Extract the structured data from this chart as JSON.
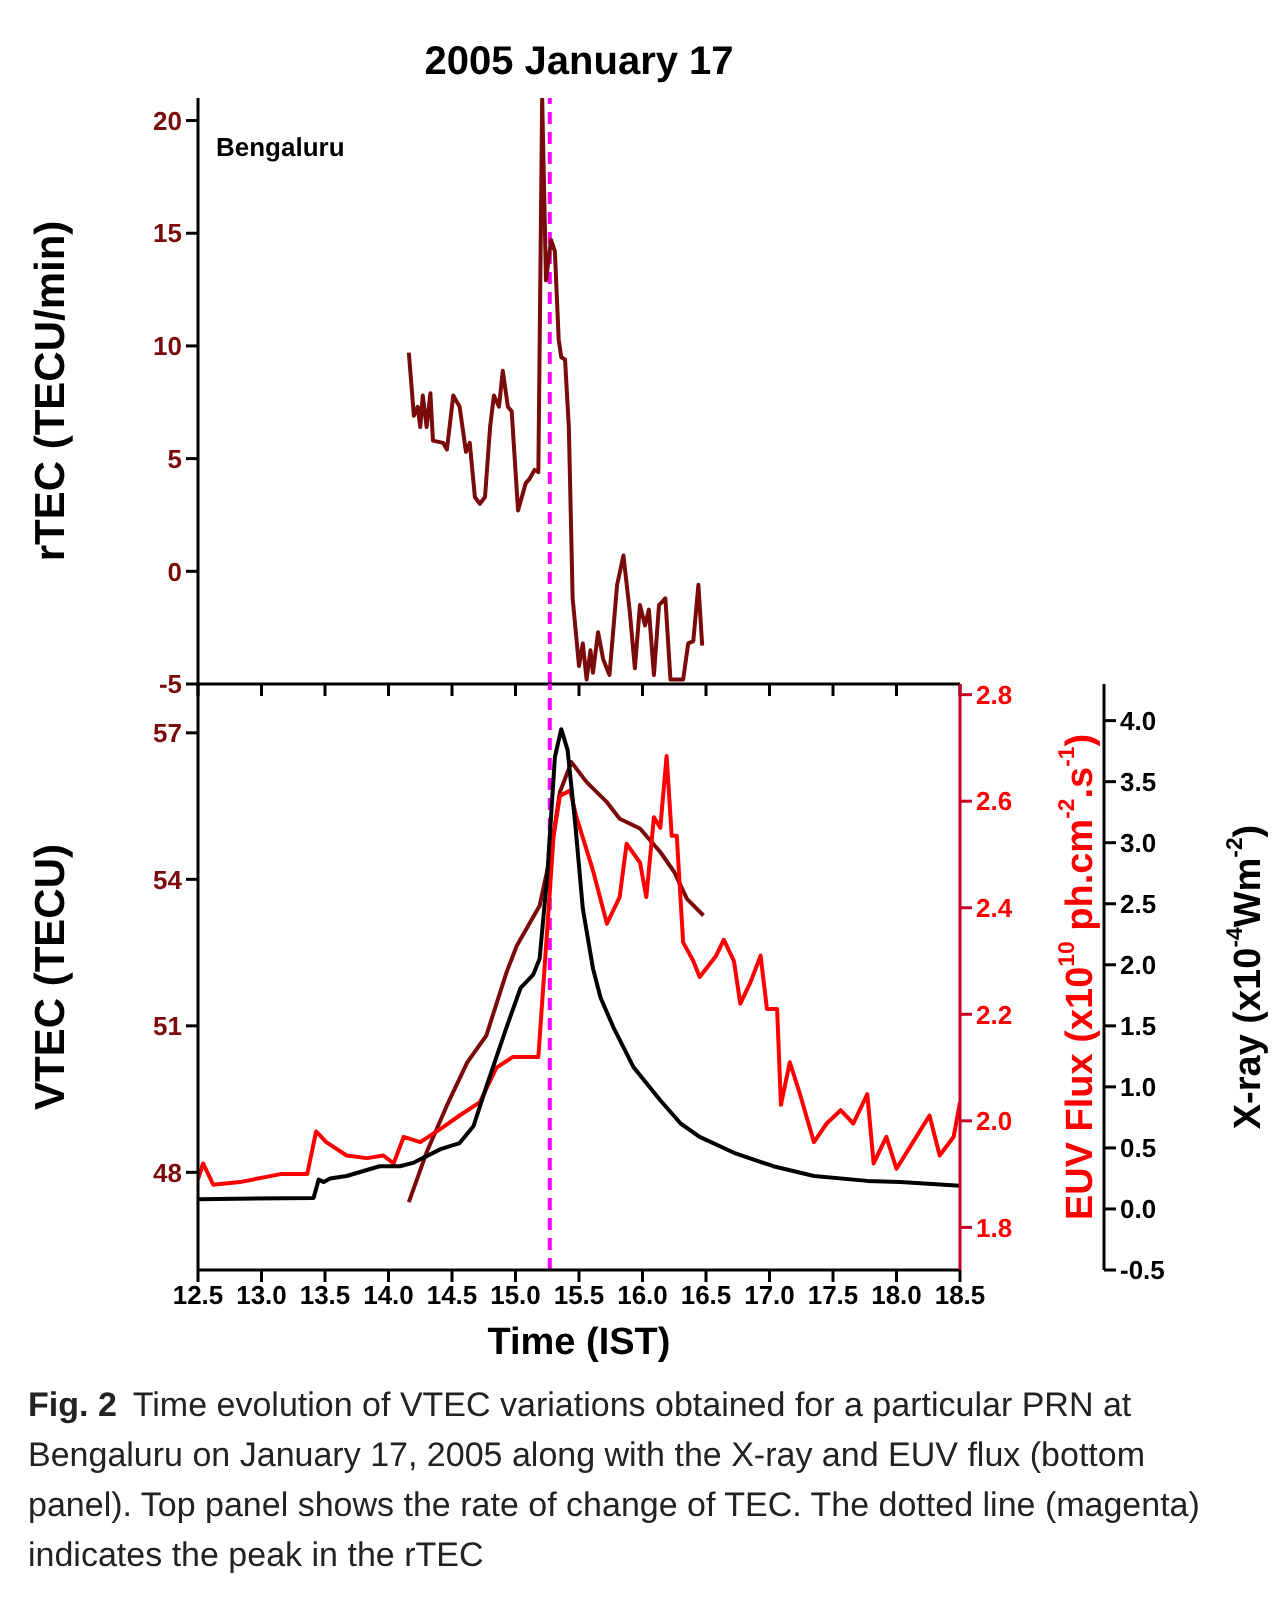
{
  "chart_data": [
    {
      "type": "line",
      "title": "2005 January 17",
      "ylabel": "rTEC (TECU/min)",
      "annotations": [
        "Bengaluru"
      ],
      "tick_labels": "y",
      "xlim": [
        12.5,
        18.5
      ],
      "xticks": [
        12.5,
        13,
        13.5,
        14,
        14.5,
        15,
        15.5,
        16,
        16.5,
        17,
        17.5,
        18,
        18.5
      ],
      "ylim": [
        -5,
        21
      ],
      "yticks": [
        -5,
        0,
        5,
        10,
        15,
        20
      ],
      "grid": false,
      "legend": false,
      "marker": "none",
      "line_style": "solid",
      "ref_lines": [
        {
          "axis": "x",
          "value": 15.27,
          "color": "#ff00ff",
          "line_style": "dashed"
        }
      ],
      "series": [
        {
          "color": "#7b0a0a",
          "x": [
            14.16,
            14.2,
            14.23,
            14.25,
            14.27,
            14.3,
            14.33,
            14.35,
            14.43,
            14.46,
            14.51,
            14.56,
            14.61,
            14.64,
            14.68,
            14.72,
            14.76,
            14.8,
            14.83,
            14.87,
            14.9,
            14.94,
            14.97,
            15.02,
            15.08,
            15.11,
            15.15,
            15.18,
            15.21,
            15.24,
            15.28,
            15.31,
            15.34,
            15.36,
            15.39,
            15.42,
            15.45,
            15.5,
            15.53,
            15.56,
            15.59,
            15.61,
            15.65,
            15.69,
            15.74,
            15.8,
            15.85,
            15.9,
            15.94,
            15.98,
            16.02,
            16.05,
            16.09,
            16.13,
            16.18,
            16.22,
            16.32,
            16.36,
            16.4,
            16.44,
            16.47
          ],
          "values": [
            9.7,
            6.9,
            7.3,
            6.4,
            7.8,
            6.4,
            7.9,
            5.8,
            5.7,
            5.4,
            7.8,
            7.3,
            5.3,
            5.7,
            3.3,
            3.0,
            3.3,
            6.4,
            7.8,
            7.3,
            8.9,
            7.3,
            7.1,
            2.7,
            3.9,
            4.1,
            4.5,
            4.4,
            21,
            12.9,
            14.7,
            14.2,
            10.3,
            9.5,
            9.4,
            6.4,
            -1.2,
            -4.2,
            -3.2,
            -4.8,
            -3.5,
            -4.5,
            -2.7,
            -3.9,
            -4.6,
            -0.6,
            0.7,
            -1.8,
            -4.3,
            -1.5,
            -2.4,
            -1.7,
            -4.6,
            -1.5,
            -1.2,
            -4.8,
            -4.8,
            -3.2,
            -3.1,
            -0.6,
            -3.3
          ]
        }
      ]
    },
    {
      "type": "line",
      "xlabel": "Time (IST)",
      "ylabel": "VTEC (TECU)",
      "y2label": "EUV Flux (x10$^{10}$ ph.cm$^{-2}$.s$^{-1}$)",
      "y3label": "X-ray (x10$^{-4}$Wm$^{-2}$)",
      "annotations": [
        "Fig. 2",
        "Time evolution of VTEC variations obtained for a particular PRN at Bengaluru on January 17, 2005 along with the X-ray and EUV flux (bottom panel). Top panel shows the rate of change of TEC. The dotted line (magenta) indicates the peak in the rTEC"
      ],
      "xlim": [
        12.5,
        18.5
      ],
      "xticks": [
        12.5,
        {
          "value": 13,
          "label": "13.0"
        },
        13.5,
        {
          "value": 14,
          "label": "14.0"
        },
        14.5,
        {
          "value": 15,
          "label": "15.0"
        },
        15.5,
        {
          "value": 16,
          "label": "16.0"
        },
        16.5,
        {
          "value": 17,
          "label": "17.0"
        },
        17.5,
        {
          "value": 18,
          "label": "18.0"
        },
        18.5
      ],
      "ylim": [
        46,
        58
      ],
      "yticks": [
        48,
        51,
        54,
        57
      ],
      "y2lim": [
        1.72,
        2.82
      ],
      "y2ticks": [
        1.8,
        {
          "value": 2,
          "label": "2.0"
        },
        2.2,
        2.4,
        2.6,
        2.8
      ],
      "y3lim": [
        -0.5,
        4.3
      ],
      "y3ticks": [
        -0.5,
        {
          "value": 0,
          "label": "0.0"
        },
        0.5,
        {
          "value": 1,
          "label": "1.0"
        },
        1.5,
        {
          "value": 2,
          "label": "2.0"
        },
        2.5,
        {
          "value": 3,
          "label": "3.0"
        },
        3.5,
        {
          "value": 4,
          "label": "4.0"
        }
      ],
      "grid": false,
      "legend": false,
      "marker": "none",
      "line_style": "solid",
      "ref_lines": [
        {
          "axis": "x",
          "value": 15.27,
          "color": "#ff00ff",
          "line_style": "dashed"
        }
      ],
      "series": [
        {
          "color": "#7b0a0a",
          "axis": "y",
          "x": [
            14.16,
            14.3,
            14.46,
            14.62,
            14.77,
            14.93,
            15.01,
            15.19,
            15.27,
            15.35,
            15.44,
            15.56,
            15.72,
            15.82,
            15.98,
            16.14,
            16.25,
            16.35,
            16.48
          ],
          "values": [
            47.39,
            48.41,
            49.37,
            50.25,
            50.8,
            52.1,
            52.64,
            53.46,
            54.42,
            55.79,
            56.4,
            55.99,
            55.58,
            55.24,
            55.04,
            54.56,
            54.15,
            53.6,
            53.26
          ]
        },
        {
          "color": "#ff0000",
          "axis": "y2",
          "x": [
            12.5,
            12.54,
            12.62,
            12.83,
            13.15,
            13.36,
            13.43,
            13.51,
            13.67,
            13.83,
            13.96,
            14.04,
            14.12,
            14.25,
            14.41,
            14.56,
            14.72,
            14.85,
            14.98,
            15.09,
            15.18,
            15.25,
            15.3,
            15.35,
            15.43,
            15.48,
            15.61,
            15.72,
            15.82,
            15.875,
            15.98,
            16.03,
            16.09,
            16.14,
            16.19,
            16.23,
            16.27,
            16.32,
            16.4,
            16.45,
            16.58,
            16.64,
            16.72,
            16.77,
            16.85,
            16.93,
            16.98,
            17.06,
            17.09,
            17.16,
            17.24,
            17.35,
            17.45,
            17.56,
            17.66,
            17.77,
            17.82,
            17.92,
            18.0,
            18.13,
            18.26,
            18.34,
            18.45,
            18.5
          ],
          "values": [
            1.89,
            1.92,
            1.88,
            1.885,
            1.9,
            1.9,
            1.98,
            1.96,
            1.935,
            1.93,
            1.935,
            1.92,
            1.97,
            1.96,
            1.985,
            2.01,
            2.035,
            2.1,
            2.12,
            2.12,
            2.12,
            2.36,
            2.535,
            2.61,
            2.62,
            2.57,
            2.47,
            2.37,
            2.42,
            2.52,
            2.485,
            2.42,
            2.57,
            2.55,
            2.685,
            2.535,
            2.535,
            2.335,
            2.3,
            2.27,
            2.31,
            2.34,
            2.3,
            2.22,
            2.26,
            2.31,
            2.21,
            2.21,
            2.03,
            2.11,
            2.05,
            1.96,
            1.995,
            2.02,
            1.995,
            2.05,
            1.92,
            1.97,
            1.91,
            1.96,
            2.01,
            1.935,
            1.97,
            2.035
          ]
        },
        {
          "color": "#000000",
          "axis": "y3",
          "x": [
            12.5,
            13.41,
            13.45,
            13.49,
            13.54,
            13.67,
            13.93,
            14.09,
            14.2,
            14.41,
            14.56,
            14.67,
            14.77,
            14.93,
            15.04,
            15.14,
            15.19,
            15.25,
            15.31,
            15.36,
            15.41,
            15.47,
            15.53,
            15.61,
            15.67,
            15.77,
            15.93,
            16.14,
            16.3,
            16.45,
            16.72,
            17.03,
            17.35,
            17.77,
            18.03,
            18.5
          ],
          "values": [
            0.08,
            0.09,
            0.24,
            0.22,
            0.25,
            0.27,
            0.35,
            0.35,
            0.38,
            0.49,
            0.54,
            0.68,
            1.0,
            1.49,
            1.81,
            1.92,
            2.05,
            2.73,
            3.7,
            3.93,
            3.76,
            3.16,
            2.46,
            1.97,
            1.73,
            1.49,
            1.16,
            0.89,
            0.7,
            0.59,
            0.46,
            0.35,
            0.27,
            0.23,
            0.22,
            0.19
          ]
        }
      ]
    }
  ]
}
